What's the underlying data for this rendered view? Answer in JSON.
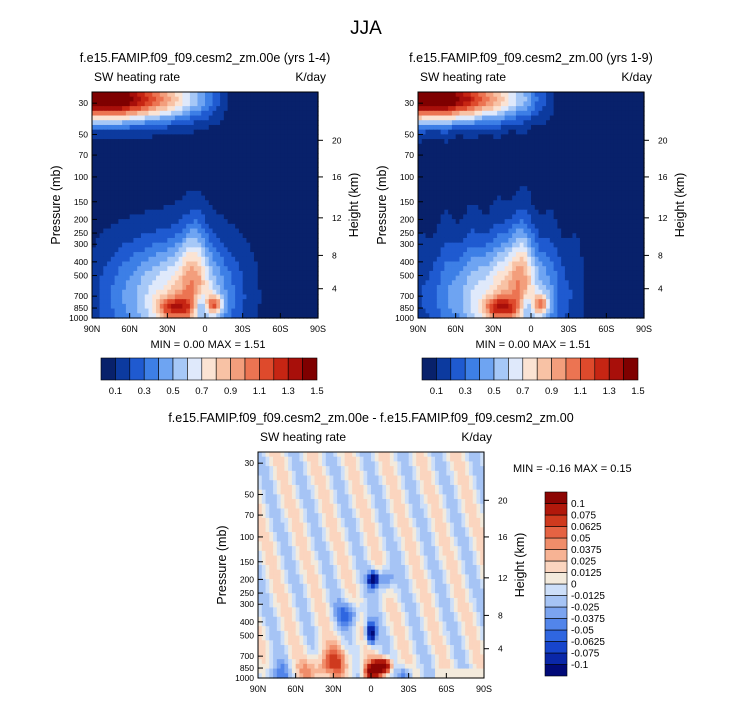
{
  "figure_title": "JJA",
  "colors": {
    "abs_scale": [
      "#08216b",
      "#0c3a9f",
      "#1f5ad0",
      "#3d7fe6",
      "#6ea4f2",
      "#a6c8f7",
      "#dfe9fb",
      "#fbe3d3",
      "#f8c2a5",
      "#f39e7c",
      "#ec7452",
      "#de4a2c",
      "#c62513",
      "#a80f0a",
      "#7f0000"
    ],
    "diff_scale": [
      "#010a78",
      "#0a27a8",
      "#1745cc",
      "#2f66e0",
      "#5285ea",
      "#7ba4f0",
      "#a6c4f5",
      "#cddff9",
      "#f3eadc",
      "#fbd5bf",
      "#f7b394",
      "#f08d6a",
      "#e56343",
      "#cf3a1e",
      "#b1180b",
      "#8c0503"
    ]
  },
  "chart_data": [
    {
      "id": "panel_left",
      "type": "heatmap",
      "title": "f.e15.FAMIP.f09_f09.cesm2_zm.00e (yrs 1-4)",
      "variable": "SW heating rate",
      "units": "K/day",
      "ylabel": "Pressure (mb)",
      "ylabel_right": "Height (km)",
      "x_ticks": [
        "90N",
        "60N",
        "30N",
        "0",
        "30S",
        "60S",
        "90S"
      ],
      "y_ticks": [
        30,
        50,
        70,
        100,
        150,
        200,
        250,
        300,
        400,
        500,
        700,
        850,
        1000
      ],
      "y_right_ticks": [
        20,
        16,
        12,
        8,
        4
      ],
      "stats": "MIN =   0.00  MAX =   1.51",
      "colorbar_labels": [
        "0.1",
        "0.3",
        "0.5",
        "0.7",
        "0.9",
        "1.1",
        "1.3",
        "1.5"
      ],
      "ylim": [
        1000,
        25
      ],
      "xlim": [
        90,
        -90
      ]
    },
    {
      "id": "panel_right",
      "type": "heatmap",
      "title": "f.e15.FAMIP.f09_f09.cesm2_zm.00 (yrs 1-9)",
      "variable": "SW heating rate",
      "units": "K/day",
      "ylabel": "Pressure (mb)",
      "ylabel_right": "Height (km)",
      "x_ticks": [
        "90N",
        "60N",
        "30N",
        "0",
        "30S",
        "60S",
        "90S"
      ],
      "y_ticks": [
        30,
        50,
        70,
        100,
        150,
        200,
        250,
        300,
        400,
        500,
        700,
        850,
        1000
      ],
      "y_right_ticks": [
        20,
        16,
        12,
        8,
        4
      ],
      "stats": "MIN =   0.00  MAX =   1.51",
      "colorbar_labels": [
        "0.1",
        "0.3",
        "0.5",
        "0.7",
        "0.9",
        "1.1",
        "1.3",
        "1.5"
      ],
      "ylim": [
        1000,
        25
      ],
      "xlim": [
        90,
        -90
      ]
    },
    {
      "id": "panel_diff",
      "type": "heatmap",
      "title": "f.e15.FAMIP.f09_f09.cesm2_zm.00e - f.e15.FAMIP.f09_f09.cesm2_zm.00",
      "variable": "SW heating rate",
      "units": "K/day",
      "ylabel": "Pressure (mb)",
      "ylabel_right": "Height (km)",
      "x_ticks": [
        "90N",
        "60N",
        "30N",
        "0",
        "30S",
        "60S",
        "90S"
      ],
      "y_ticks": [
        30,
        50,
        70,
        100,
        150,
        200,
        250,
        300,
        400,
        500,
        700,
        850,
        1000
      ],
      "y_right_ticks": [
        20,
        16,
        12,
        8,
        4
      ],
      "stats": "MIN =  -0.16  MAX =   0.15",
      "colorbar_labels": [
        "0.1",
        "0.075",
        "0.0625",
        "0.05",
        "0.0375",
        "0.025",
        "0.0125",
        "0",
        "-0.0125",
        "-0.025",
        "-0.0375",
        "-0.05",
        "-0.0625",
        "-0.075",
        "-0.1"
      ],
      "ylim": [
        1000,
        25
      ],
      "xlim": [
        90,
        -90
      ]
    }
  ]
}
